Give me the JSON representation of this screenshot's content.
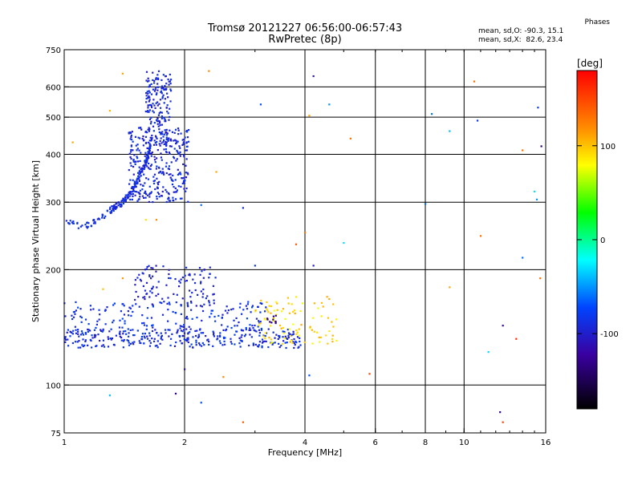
{
  "header": {
    "title_line1": "Tromsø 20121227 06:56:00-06:57:43",
    "title_line2": "RwPretec (8p)"
  },
  "stats": {
    "heading": "Phases",
    "o_mode": "mean, sd,O: -90.3, 15.1",
    "x_mode": "mean, sd,X:  82.6, 23.4"
  },
  "colorbar": {
    "label": "[deg]",
    "range": [
      -180,
      180
    ],
    "ticks": [
      {
        "value": 100,
        "label": "100"
      },
      {
        "value": 0,
        "label": "0"
      },
      {
        "value": -100,
        "label": "-100"
      }
    ],
    "colors": [
      "#ff0000",
      "#ff8000",
      "#ffff00",
      "#00ff00",
      "#00ffff",
      "#0000ff",
      "#3000a0",
      "#000000"
    ]
  },
  "chart_data": {
    "type": "scatter",
    "title": "Tromsø 20121227 06:56:00-06:57:43",
    "subtitle": "RwPretec (8p)",
    "xlabel": "Frequency [MHz]",
    "ylabel": "Stationary phase Virtual Height [km]",
    "x_scale": "log",
    "y_scale": "log",
    "xlim": [
      1,
      16
    ],
    "ylim": [
      75,
      750
    ],
    "x_ticks": [
      {
        "value": 1,
        "label": "1"
      },
      {
        "value": 2,
        "label": "2"
      },
      {
        "value": 4,
        "label": "4"
      },
      {
        "value": 6,
        "label": "6"
      },
      {
        "value": 8,
        "label": "8"
      },
      {
        "value": 10,
        "label": "10"
      },
      {
        "value": 16,
        "label": "16"
      }
    ],
    "y_ticks": [
      {
        "value": 75,
        "label": "75"
      },
      {
        "value": 100,
        "label": "100"
      },
      {
        "value": 200,
        "label": "200"
      },
      {
        "value": 300,
        "label": "300"
      },
      {
        "value": 400,
        "label": "400"
      },
      {
        "value": 500,
        "label": "500"
      },
      {
        "value": 600,
        "label": "600"
      },
      {
        "value": 750,
        "label": "750"
      }
    ],
    "x_grid": [
      2,
      4,
      6,
      8,
      10
    ],
    "y_grid": [
      100,
      200,
      300,
      400,
      500,
      600
    ],
    "grid": true,
    "color_by": "phase_deg",
    "clusters": [
      {
        "name_hint": "F-trace low",
        "f": [
          1.0,
          1.35
        ],
        "h": [
          255,
          285
        ],
        "phase": [
          -95,
          -80
        ],
        "n": 40,
        "mode": "curve",
        "curve": [
          [
            1.0,
            268
          ],
          [
            1.1,
            258
          ],
          [
            1.2,
            268
          ],
          [
            1.3,
            285
          ]
        ]
      },
      {
        "name_hint": "F-trace rise",
        "f": [
          1.3,
          1.65
        ],
        "h": [
          285,
          420
        ],
        "phase": [
          -100,
          -80
        ],
        "n": 160,
        "mode": "curve",
        "curve": [
          [
            1.3,
            285
          ],
          [
            1.4,
            300
          ],
          [
            1.5,
            330
          ],
          [
            1.6,
            380
          ],
          [
            1.65,
            430
          ]
        ]
      },
      {
        "name_hint": "F-spread main",
        "f": [
          1.45,
          2.05
        ],
        "h": [
          300,
          470
        ],
        "phase": [
          -105,
          -80
        ],
        "n": 320
      },
      {
        "name_hint": "F-spread upper",
        "f": [
          1.6,
          1.85
        ],
        "h": [
          420,
          660
        ],
        "phase": [
          -105,
          -80
        ],
        "n": 180
      },
      {
        "name_hint": "E low band",
        "f": [
          1.0,
          3.9
        ],
        "h": [
          125,
          140
        ],
        "phase": [
          -105,
          -75
        ],
        "n": 320
      },
      {
        "name_hint": "E mid band",
        "f": [
          1.0,
          3.2
        ],
        "h": [
          138,
          165
        ],
        "phase": [
          -100,
          -70
        ],
        "n": 170
      },
      {
        "name_hint": "E upper",
        "f": [
          1.5,
          2.4
        ],
        "h": [
          160,
          205
        ],
        "phase": [
          -105,
          -85
        ],
        "n": 110
      },
      {
        "name_hint": "E yellow",
        "f": [
          3.0,
          4.8
        ],
        "h": [
          128,
          170
        ],
        "phase": [
          75,
          110
        ],
        "n": 90
      },
      {
        "name_hint": "E purple",
        "f": [
          3.2,
          3.5
        ],
        "h": [
          145,
          152
        ],
        "phase": [
          -135,
          -130
        ],
        "n": 10
      }
    ],
    "points": [
      {
        "f": 1.05,
        "h": 430,
        "phase": 110
      },
      {
        "f": 1.3,
        "h": 520,
        "phase": 105
      },
      {
        "f": 1.4,
        "h": 650,
        "phase": 110
      },
      {
        "f": 2.3,
        "h": 660,
        "phase": 120
      },
      {
        "f": 3.1,
        "h": 540,
        "phase": -70
      },
      {
        "f": 4.2,
        "h": 640,
        "phase": -110
      },
      {
        "f": 4.1,
        "h": 505,
        "phase": 110
      },
      {
        "f": 4.6,
        "h": 540,
        "phase": -50
      },
      {
        "f": 5.2,
        "h": 440,
        "phase": 130
      },
      {
        "f": 8.3,
        "h": 510,
        "phase": -60
      },
      {
        "f": 9.2,
        "h": 460,
        "phase": -40
      },
      {
        "f": 10.6,
        "h": 620,
        "phase": 130
      },
      {
        "f": 10.8,
        "h": 490,
        "phase": -80
      },
      {
        "f": 2.4,
        "h": 360,
        "phase": 110
      },
      {
        "f": 2.8,
        "h": 290,
        "phase": -90
      },
      {
        "f": 2.2,
        "h": 295,
        "phase": -60
      },
      {
        "f": 1.7,
        "h": 270,
        "phase": 120
      },
      {
        "f": 3.8,
        "h": 233,
        "phase": 140
      },
      {
        "f": 4.0,
        "h": 250,
        "phase": 130
      },
      {
        "f": 4.2,
        "h": 205,
        "phase": -100
      },
      {
        "f": 5.0,
        "h": 235,
        "phase": -30
      },
      {
        "f": 9.2,
        "h": 180,
        "phase": 110
      },
      {
        "f": 11.0,
        "h": 245,
        "phase": 130
      },
      {
        "f": 14.0,
        "h": 215,
        "phase": -60
      },
      {
        "f": 15.5,
        "h": 190,
        "phase": 130
      },
      {
        "f": 15.0,
        "h": 320,
        "phase": -30
      },
      {
        "f": 15.2,
        "h": 305,
        "phase": -50
      },
      {
        "f": 14.0,
        "h": 410,
        "phase": 130
      },
      {
        "f": 15.3,
        "h": 530,
        "phase": -80
      },
      {
        "f": 15.6,
        "h": 420,
        "phase": -140
      },
      {
        "f": 12.5,
        "h": 143,
        "phase": -120
      },
      {
        "f": 13.5,
        "h": 132,
        "phase": 160
      },
      {
        "f": 11.5,
        "h": 122,
        "phase": -30
      },
      {
        "f": 5.8,
        "h": 107,
        "phase": 150
      },
      {
        "f": 4.1,
        "h": 106,
        "phase": -70
      },
      {
        "f": 2.5,
        "h": 105,
        "phase": 120
      },
      {
        "f": 2.0,
        "h": 110,
        "phase": -110
      },
      {
        "f": 1.3,
        "h": 94,
        "phase": -40
      },
      {
        "f": 1.9,
        "h": 95,
        "phase": -130
      },
      {
        "f": 2.2,
        "h": 90,
        "phase": -70
      },
      {
        "f": 2.8,
        "h": 80,
        "phase": 140
      },
      {
        "f": 12.3,
        "h": 85,
        "phase": -130
      },
      {
        "f": 12.5,
        "h": 80,
        "phase": 150
      },
      {
        "f": 8.0,
        "h": 297,
        "phase": -60
      },
      {
        "f": 1.25,
        "h": 178,
        "phase": 100
      },
      {
        "f": 1.4,
        "h": 190,
        "phase": 115
      },
      {
        "f": 1.6,
        "h": 270,
        "phase": 90
      },
      {
        "f": 3.0,
        "h": 205,
        "phase": -80
      }
    ]
  }
}
